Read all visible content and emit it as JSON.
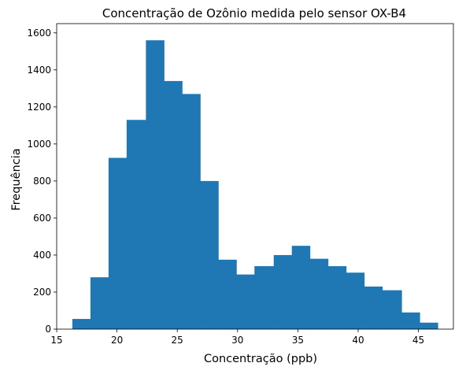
{
  "chart_data": {
    "type": "bar",
    "title": "Concentração de Ozônio medida pelo sensor OX-B4",
    "xlabel": "Concentração (ppb)",
    "ylabel": "Frequência",
    "bar_color": "#1f77b4",
    "xlim": [
      15.0,
      47.9
    ],
    "ylim": [
      0,
      1650
    ],
    "xticks": [
      15,
      20,
      25,
      30,
      35,
      40,
      45
    ],
    "yticks": [
      0,
      200,
      400,
      600,
      800,
      1000,
      1200,
      1400,
      1600
    ],
    "bin_edges": [
      16.3,
      17.8,
      19.3,
      20.8,
      22.4,
      23.9,
      25.4,
      26.9,
      28.4,
      29.9,
      31.4,
      33.0,
      34.5,
      36.0,
      37.5,
      39.0,
      40.5,
      42.0,
      43.6,
      45.1,
      46.6
    ],
    "values": [
      55,
      280,
      925,
      1130,
      1560,
      1340,
      1270,
      800,
      375,
      295,
      340,
      400,
      450,
      380,
      340,
      305,
      230,
      210,
      90,
      35
    ],
    "grid": false,
    "legend": null
  }
}
